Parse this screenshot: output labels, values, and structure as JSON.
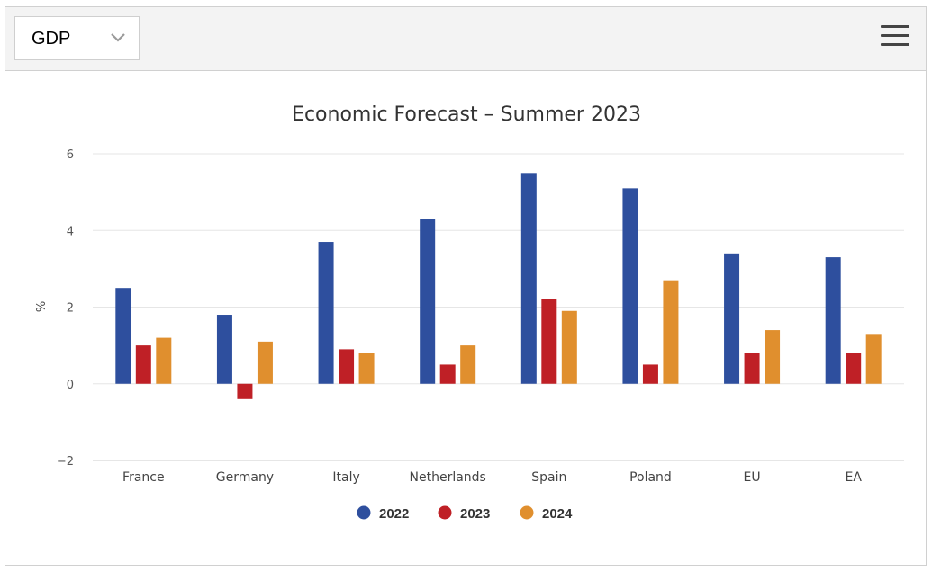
{
  "toolbar": {
    "indicator_selected": "GDP",
    "chevron_icon": "chevron-down-icon",
    "menu_icon": "hamburger-menu-icon"
  },
  "colors": {
    "2022": "#2e4f9e",
    "2023": "#bf2026",
    "2024": "#e08f2e",
    "grid": "#e6e6e6",
    "axis": "#cccccc"
  },
  "chart_data": {
    "type": "bar",
    "title": "Economic Forecast – Summer 2023",
    "xlabel": "",
    "ylabel": "%",
    "ylim": [
      -2,
      6
    ],
    "yticks": [
      6,
      4,
      2,
      0,
      -2
    ],
    "ytick_labels": [
      "6",
      "4",
      "2",
      "0",
      "−2"
    ],
    "grid": true,
    "legend_position": "bottom-center",
    "categories": [
      "France",
      "Germany",
      "Italy",
      "Netherlands",
      "Spain",
      "Poland",
      "EU",
      "EA"
    ],
    "series": [
      {
        "name": "2022",
        "values": [
          2.5,
          1.8,
          3.7,
          4.3,
          5.5,
          5.1,
          3.4,
          3.3
        ]
      },
      {
        "name": "2023",
        "values": [
          1.0,
          -0.4,
          0.9,
          0.5,
          2.2,
          0.5,
          0.8,
          0.8
        ]
      },
      {
        "name": "2024",
        "values": [
          1.2,
          1.1,
          0.8,
          1.0,
          1.9,
          2.7,
          1.4,
          1.3
        ]
      }
    ]
  }
}
